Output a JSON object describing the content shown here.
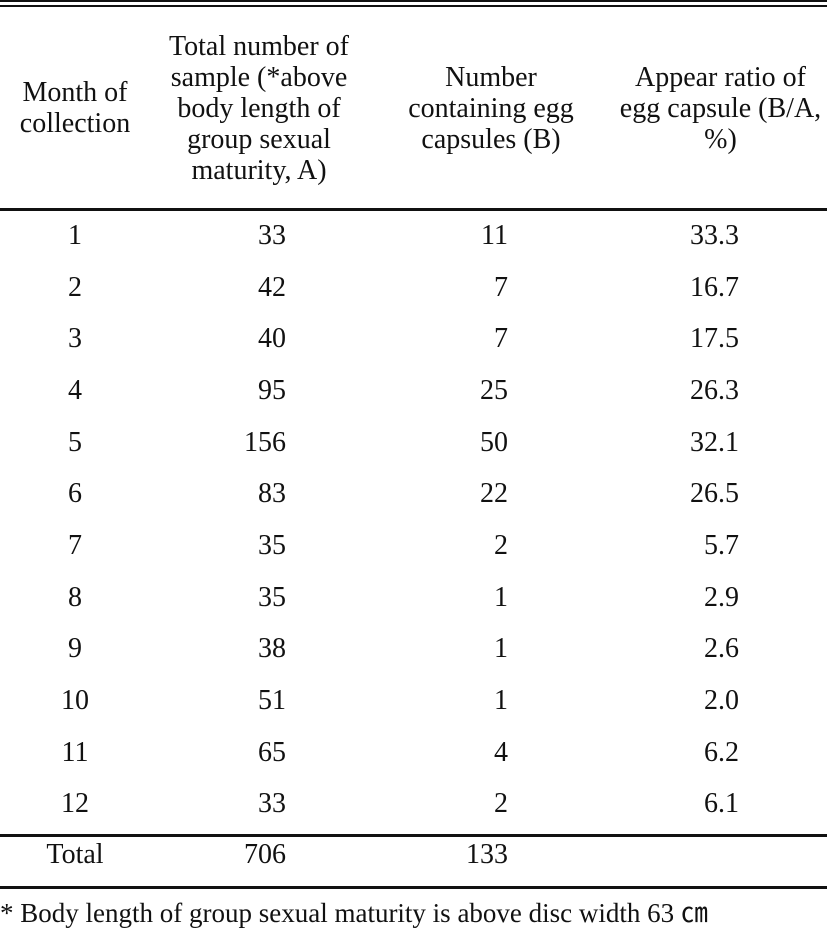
{
  "table": {
    "headers": [
      "Month of collection",
      "Total number of sample (*above body length of group sexual maturity, A)",
      "Number containing egg capsules (B)",
      "Appear ratio of egg capsule (B/A, %)"
    ],
    "rows": [
      {
        "month": "1",
        "total": "33",
        "eggs": "11",
        "ratio": "33.3"
      },
      {
        "month": "2",
        "total": "42",
        "eggs": "7",
        "ratio": "16.7"
      },
      {
        "month": "3",
        "total": "40",
        "eggs": "7",
        "ratio": "17.5"
      },
      {
        "month": "4",
        "total": "95",
        "eggs": "25",
        "ratio": "26.3"
      },
      {
        "month": "5",
        "total": "156",
        "eggs": "50",
        "ratio": "32.1"
      },
      {
        "month": "6",
        "total": "83",
        "eggs": "22",
        "ratio": "26.5"
      },
      {
        "month": "7",
        "total": "35",
        "eggs": "2",
        "ratio": "5.7"
      },
      {
        "month": "8",
        "total": "35",
        "eggs": "1",
        "ratio": "2.9"
      },
      {
        "month": "9",
        "total": "38",
        "eggs": "1",
        "ratio": "2.6"
      },
      {
        "month": "10",
        "total": "51",
        "eggs": "1",
        "ratio": "2.0"
      },
      {
        "month": "11",
        "total": "65",
        "eggs": "4",
        "ratio": "6.2"
      },
      {
        "month": "12",
        "total": "33",
        "eggs": "2",
        "ratio": "6.1"
      }
    ],
    "footer": {
      "label": "Total",
      "total": "706",
      "eggs": "133",
      "ratio": ""
    }
  },
  "footnote": "* Body length of group sexual maturity is above disc width 63 ㎝"
}
